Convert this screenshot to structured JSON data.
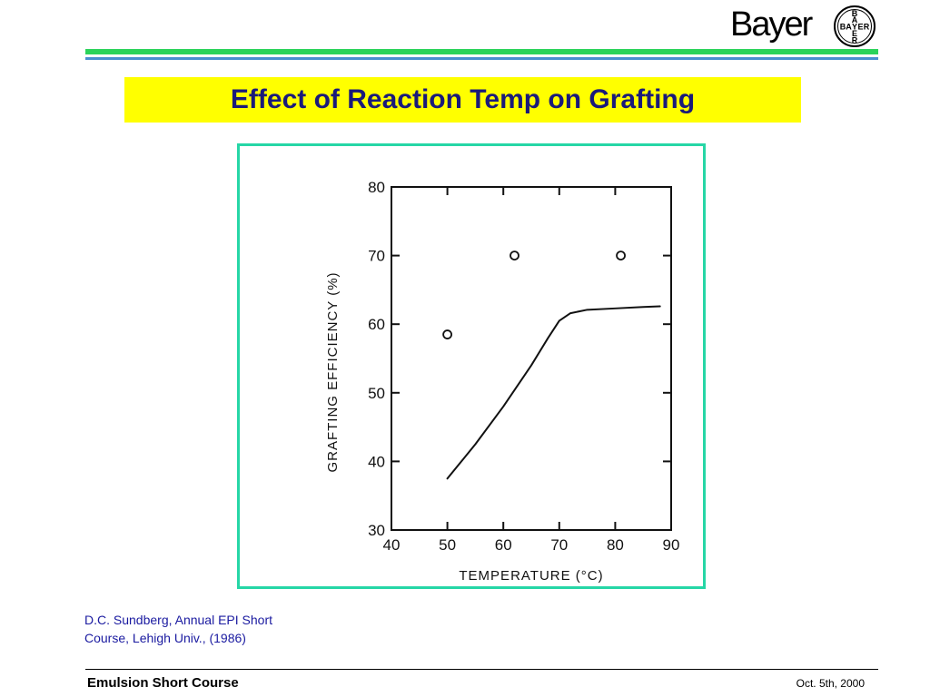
{
  "header": {
    "brand_text": "Bayer",
    "logo_cross_letters": [
      "B",
      "A",
      "Y",
      "E",
      "R"
    ],
    "rule_colors": [
      "#2bd35a",
      "#4a8fd0"
    ]
  },
  "slide": {
    "title": "Effect of Reaction Temp on Grafting",
    "title_bg": "#ffff00",
    "title_color": "#1a1a7a",
    "frame_color": "#26d6a6"
  },
  "citation": {
    "line1": "D.C. Sundberg, Annual EPI Short",
    "line2": "Course, Lehigh Univ., (1986)"
  },
  "footer": {
    "left": "Emulsion Short Course",
    "right": "Oct. 5th, 2000"
  },
  "chart_data": {
    "type": "scatter",
    "xlabel": "TEMPERATURE (°C)",
    "ylabel": "GRAFTING EFFICIENCY (%)",
    "xlim": [
      40,
      90
    ],
    "ylim": [
      30,
      80
    ],
    "xticks": [
      40,
      50,
      60,
      70,
      80,
      90
    ],
    "yticks": [
      30,
      40,
      50,
      60,
      70,
      80
    ],
    "grid": false,
    "series": [
      {
        "type": "scatter",
        "marker": "open-circle",
        "x": [
          50,
          62,
          81
        ],
        "y": [
          58.5,
          70,
          70
        ]
      },
      {
        "type": "line",
        "x": [
          50,
          55,
          60,
          65,
          68,
          70,
          72,
          75,
          80,
          85,
          88
        ],
        "y": [
          37.5,
          42.5,
          48,
          54,
          58,
          60.5,
          61.6,
          62.1,
          62.3,
          62.5,
          62.6
        ]
      }
    ]
  }
}
